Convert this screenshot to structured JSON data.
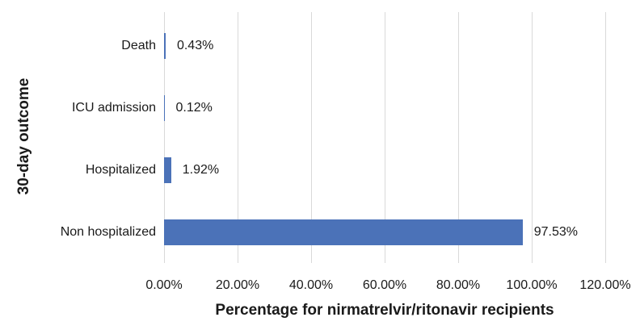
{
  "chart_data": {
    "type": "bar",
    "orientation": "horizontal",
    "categories": [
      "Death",
      "ICU admission",
      "Hospitalized",
      "Non hospitalized"
    ],
    "values": [
      0.43,
      0.12,
      1.92,
      97.53
    ],
    "value_labels": [
      "0.43%",
      "0.12%",
      "1.92%",
      "97.53%"
    ],
    "xlabel": "Percentage for nirmatrelvir/ritonavir recipients",
    "ylabel": "30-day outcome",
    "xlim": [
      0,
      120
    ],
    "xticks": [
      0,
      20,
      40,
      60,
      80,
      100,
      120
    ],
    "xtick_labels": [
      "0.00%",
      "20.00%",
      "40.00%",
      "60.00%",
      "80.00%",
      "100.00%",
      "120.00%"
    ],
    "grid": "vertical",
    "legend": "none",
    "bar_color": "#4B72B8",
    "gridline_color": "#D9D9D9",
    "text_color": "#1A1A1A",
    "background_color": "#FFFFFF"
  }
}
